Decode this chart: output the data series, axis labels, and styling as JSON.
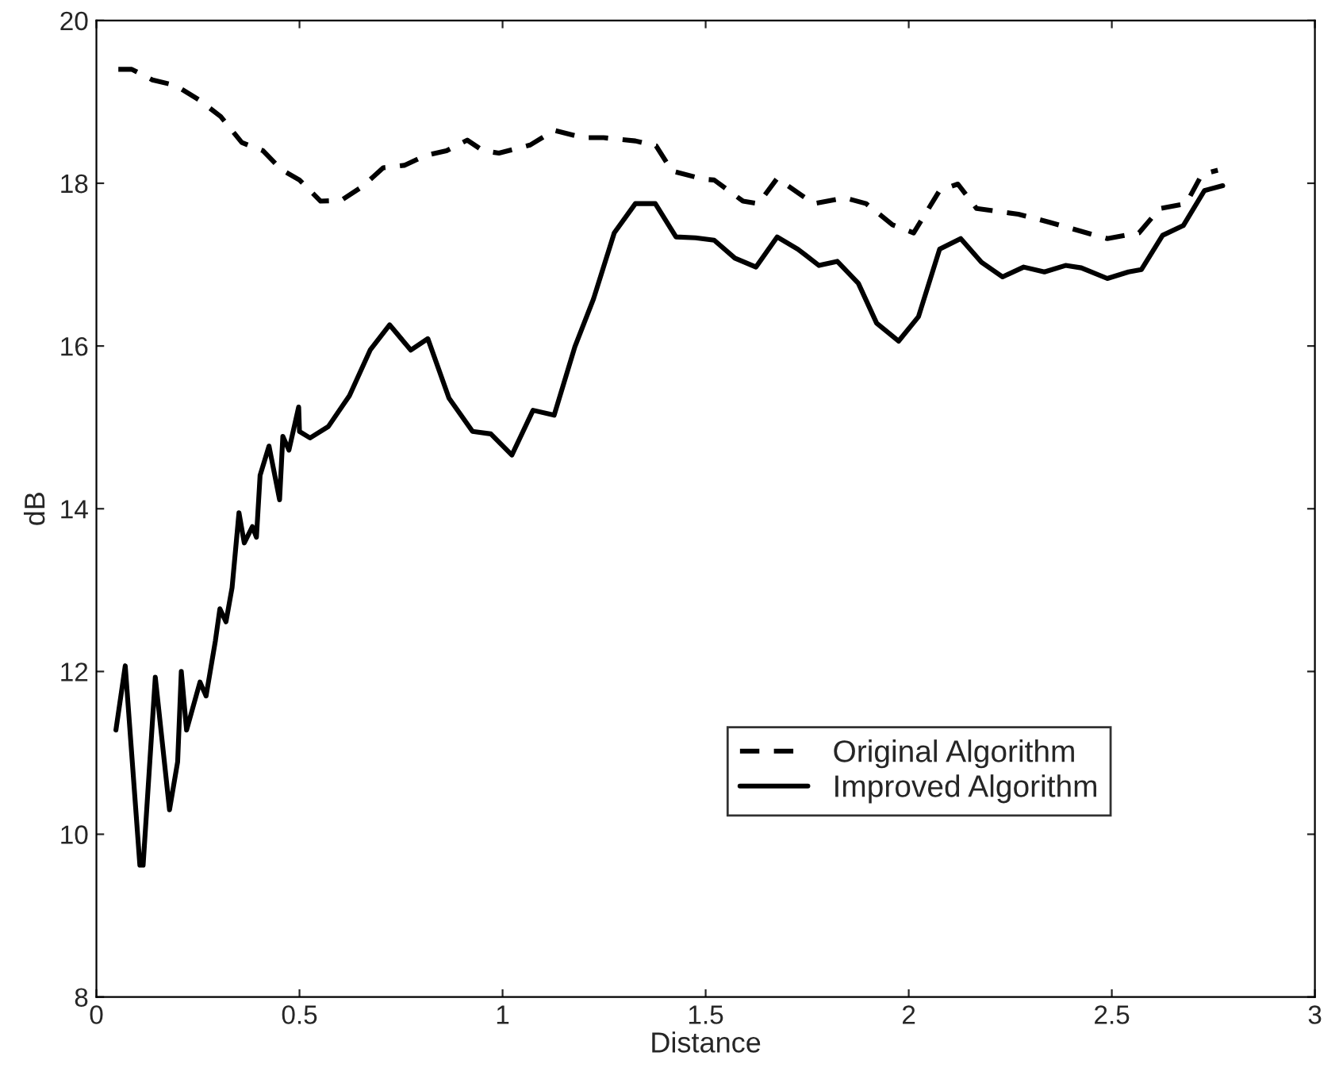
{
  "chart_data": {
    "type": "line",
    "xlabel": "Distance",
    "ylabel": "dB",
    "xlim": [
      0,
      3
    ],
    "xticks": [
      0,
      0.5,
      1,
      1.5,
      2,
      2.5,
      3
    ],
    "ylim": [
      8,
      20
    ],
    "yticks": [
      8,
      10,
      12,
      14,
      16,
      18,
      20
    ],
    "grid": false,
    "legend": "bottom right",
    "marker": "none",
    "series": [
      {
        "name": "Original Algorithm",
        "color": "#000000",
        "line_style": "dashed",
        "x": [
          0.054,
          0.087,
          0.138,
          0.196,
          0.254,
          0.306,
          0.358,
          0.41,
          0.455,
          0.5,
          0.552,
          0.603,
          0.655,
          0.706,
          0.758,
          0.81,
          0.862,
          0.913,
          0.952,
          0.991,
          1.068,
          1.127,
          1.198,
          1.249,
          1.327,
          1.378,
          1.417,
          1.495,
          1.521,
          1.592,
          1.63,
          1.676,
          1.766,
          1.843,
          1.895,
          1.96,
          2.012,
          2.076,
          2.121,
          2.167,
          2.27,
          2.347,
          2.438,
          2.489,
          2.567,
          2.618,
          2.683,
          2.722,
          2.761
        ],
        "values": [
          19.4,
          19.4,
          19.27,
          19.2,
          19.02,
          18.82,
          18.5,
          18.4,
          18.17,
          18.04,
          17.78,
          17.79,
          17.96,
          18.19,
          18.22,
          18.34,
          18.4,
          18.53,
          18.4,
          18.37,
          18.47,
          18.65,
          18.56,
          18.56,
          18.52,
          18.46,
          18.15,
          18.05,
          18.04,
          17.78,
          17.75,
          18.06,
          17.75,
          17.82,
          17.75,
          17.49,
          17.39,
          17.91,
          17.99,
          17.69,
          17.62,
          17.52,
          17.39,
          17.32,
          17.39,
          17.69,
          17.75,
          18.11,
          18.16
        ]
      },
      {
        "name": "Improved Algorithm",
        "color": "#000000",
        "line_style": "solid",
        "x": [
          0.048,
          0.071,
          0.107,
          0.115,
          0.145,
          0.18,
          0.2,
          0.209,
          0.222,
          0.255,
          0.27,
          0.293,
          0.304,
          0.319,
          0.334,
          0.351,
          0.364,
          0.384,
          0.394,
          0.403,
          0.425,
          0.451,
          0.459,
          0.474,
          0.498,
          0.5,
          0.526,
          0.571,
          0.623,
          0.674,
          0.722,
          0.774,
          0.816,
          0.868,
          0.926,
          0.971,
          1.023,
          1.075,
          1.127,
          1.178,
          1.224,
          1.275,
          1.327,
          1.376,
          1.427,
          1.475,
          1.521,
          1.572,
          1.624,
          1.676,
          1.727,
          1.779,
          1.824,
          1.876,
          1.921,
          1.975,
          2.024,
          2.076,
          2.128,
          2.179,
          2.231,
          2.283,
          2.334,
          2.386,
          2.425,
          2.489,
          2.541,
          2.573,
          2.625,
          2.676,
          2.728,
          2.773
        ],
        "values": [
          11.28,
          12.07,
          9.62,
          9.62,
          11.93,
          10.3,
          10.89,
          12.0,
          11.28,
          11.87,
          11.7,
          12.38,
          12.77,
          12.61,
          13.03,
          13.95,
          13.58,
          13.78,
          13.65,
          14.41,
          14.77,
          14.11,
          14.89,
          14.72,
          15.25,
          14.95,
          14.87,
          15.01,
          15.39,
          15.95,
          16.26,
          15.95,
          16.09,
          15.36,
          14.95,
          14.92,
          14.66,
          15.21,
          15.15,
          15.99,
          16.58,
          17.39,
          17.75,
          17.75,
          17.34,
          17.33,
          17.3,
          17.08,
          16.97,
          17.34,
          17.19,
          16.99,
          17.04,
          16.77,
          16.28,
          16.06,
          16.36,
          17.19,
          17.32,
          17.03,
          16.85,
          16.97,
          16.91,
          16.99,
          16.96,
          16.83,
          16.91,
          16.94,
          17.36,
          17.48,
          17.91,
          17.97
        ]
      }
    ]
  }
}
